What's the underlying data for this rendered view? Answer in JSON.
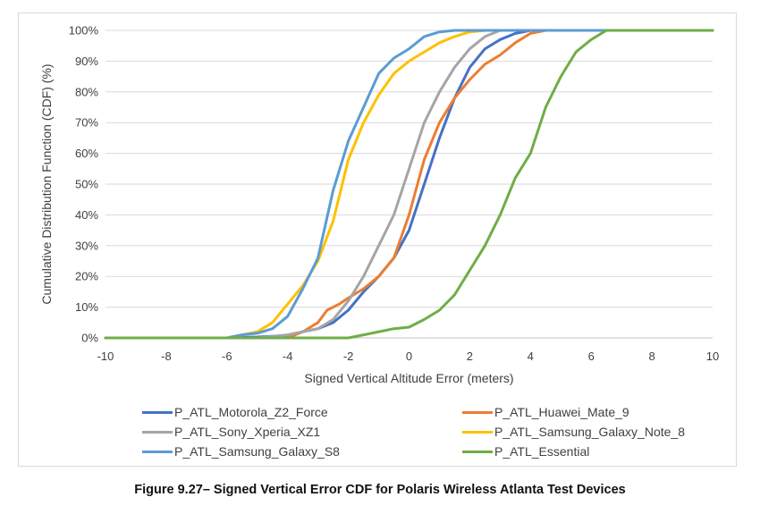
{
  "chart_data": {
    "type": "line",
    "title": "",
    "xlabel": "Signed Vertical Altitude Error (meters)",
    "ylabel": "Cumulative Distribution Function (CDF) (%)",
    "xlim": [
      -10,
      10
    ],
    "ylim": [
      0,
      100
    ],
    "x_ticks": [
      "-10",
      "-8",
      "-6",
      "-4",
      "-2",
      "0",
      "2",
      "4",
      "6",
      "8",
      "10"
    ],
    "y_ticks": [
      "0%",
      "10%",
      "20%",
      "30%",
      "40%",
      "50%",
      "60%",
      "70%",
      "80%",
      "90%",
      "100%"
    ],
    "grid": "horizontal",
    "legend_position": "bottom",
    "series": [
      {
        "name": "P_ATL_Motorola_Z2_Force",
        "color": "#4472C4",
        "points": [
          [
            -10,
            0
          ],
          [
            -6,
            0
          ],
          [
            -5,
            0.3
          ],
          [
            -4,
            0.8
          ],
          [
            -3.5,
            2
          ],
          [
            -3,
            3
          ],
          [
            -2.5,
            5
          ],
          [
            -2,
            9
          ],
          [
            -1.5,
            15
          ],
          [
            -1,
            20
          ],
          [
            -0.5,
            26
          ],
          [
            0,
            35
          ],
          [
            0.5,
            50
          ],
          [
            1,
            65
          ],
          [
            1.5,
            78
          ],
          [
            2,
            88
          ],
          [
            2.5,
            94
          ],
          [
            3,
            97
          ],
          [
            3.5,
            99
          ],
          [
            4,
            100
          ],
          [
            10,
            100
          ]
        ]
      },
      {
        "name": "P_ATL_Huawei_Mate_9",
        "color": "#ED7D31",
        "points": [
          [
            -10,
            0
          ],
          [
            -4,
            0
          ],
          [
            -3.5,
            2
          ],
          [
            -3,
            5
          ],
          [
            -2.7,
            9
          ],
          [
            -2.3,
            11
          ],
          [
            -2,
            13
          ],
          [
            -1.5,
            16
          ],
          [
            -1,
            20
          ],
          [
            -0.5,
            26
          ],
          [
            0,
            40
          ],
          [
            0.5,
            58
          ],
          [
            1,
            70
          ],
          [
            1.5,
            78
          ],
          [
            2,
            84
          ],
          [
            2.5,
            89
          ],
          [
            3,
            92
          ],
          [
            3.5,
            96
          ],
          [
            4,
            99
          ],
          [
            4.5,
            100
          ],
          [
            10,
            100
          ]
        ]
      },
      {
        "name": "P_ATL_Sony_Xperia_XZ1",
        "color": "#A5A5A5",
        "points": [
          [
            -10,
            0
          ],
          [
            -5,
            0
          ],
          [
            -4,
            1
          ],
          [
            -3.5,
            2
          ],
          [
            -3,
            3
          ],
          [
            -2.5,
            6
          ],
          [
            -2,
            12
          ],
          [
            -1.5,
            20
          ],
          [
            -1,
            30
          ],
          [
            -0.5,
            40
          ],
          [
            0,
            55
          ],
          [
            0.5,
            70
          ],
          [
            1,
            80
          ],
          [
            1.5,
            88
          ],
          [
            2,
            94
          ],
          [
            2.5,
            98
          ],
          [
            3,
            100
          ],
          [
            10,
            100
          ]
        ]
      },
      {
        "name": "P_ATL_Samsung_Galaxy_Note_8",
        "color": "#FFC000",
        "points": [
          [
            -10,
            0
          ],
          [
            -6,
            0
          ],
          [
            -5.5,
            1
          ],
          [
            -5,
            2
          ],
          [
            -4.5,
            5
          ],
          [
            -4,
            11
          ],
          [
            -3.5,
            17
          ],
          [
            -3,
            25
          ],
          [
            -2.5,
            38
          ],
          [
            -2,
            58
          ],
          [
            -1.5,
            70
          ],
          [
            -1,
            79
          ],
          [
            -0.5,
            86
          ],
          [
            0,
            90
          ],
          [
            0.5,
            93
          ],
          [
            1,
            96
          ],
          [
            1.5,
            98
          ],
          [
            2,
            99.5
          ],
          [
            2.5,
            100
          ],
          [
            10,
            100
          ]
        ]
      },
      {
        "name": "P_ATL_Samsung_Galaxy_S8",
        "color": "#5B9BD5",
        "points": [
          [
            -10,
            0
          ],
          [
            -6,
            0
          ],
          [
            -5.5,
            1
          ],
          [
            -5,
            1.5
          ],
          [
            -4.5,
            3
          ],
          [
            -4,
            7
          ],
          [
            -3.5,
            16
          ],
          [
            -3,
            26
          ],
          [
            -2.5,
            48
          ],
          [
            -2,
            64
          ],
          [
            -1.5,
            75
          ],
          [
            -1,
            86
          ],
          [
            -0.5,
            91
          ],
          [
            0,
            94
          ],
          [
            0.5,
            98
          ],
          [
            1,
            99.5
          ],
          [
            1.5,
            100
          ],
          [
            10,
            100
          ]
        ]
      },
      {
        "name": "P_ATL_Essential",
        "color": "#70AD47",
        "points": [
          [
            -10,
            0
          ],
          [
            -3,
            0
          ],
          [
            -2,
            0
          ],
          [
            -1.5,
            1
          ],
          [
            -1,
            2
          ],
          [
            -0.5,
            3
          ],
          [
            0,
            3.5
          ],
          [
            0.5,
            6
          ],
          [
            1,
            9
          ],
          [
            1.5,
            14
          ],
          [
            2,
            22
          ],
          [
            2.5,
            30
          ],
          [
            3,
            40
          ],
          [
            3.5,
            52
          ],
          [
            4,
            60
          ],
          [
            4.5,
            75
          ],
          [
            5,
            85
          ],
          [
            5.5,
            93
          ],
          [
            6,
            97
          ],
          [
            6.5,
            100
          ],
          [
            7,
            100
          ],
          [
            10,
            100
          ]
        ]
      }
    ]
  },
  "caption": "Figure 9.27– Signed Vertical Error CDF for Polaris Wireless Atlanta Test Devices"
}
